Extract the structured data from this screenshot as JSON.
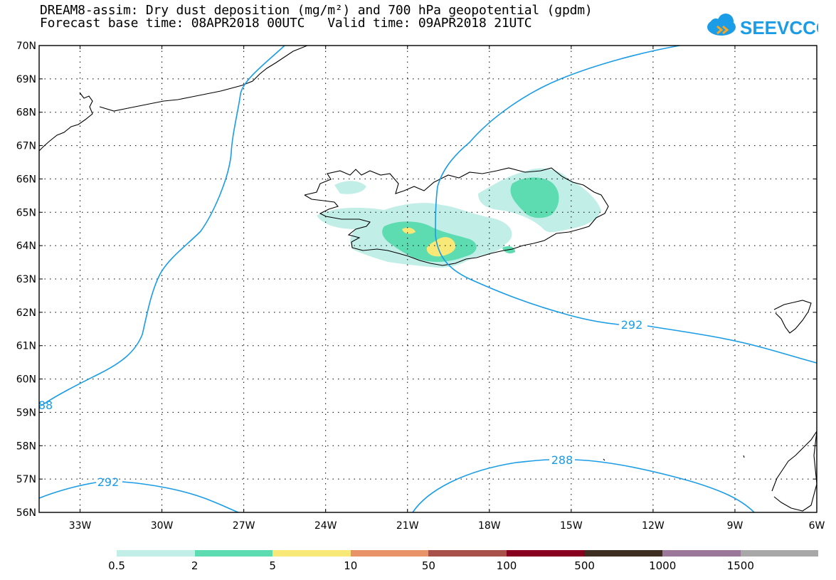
{
  "title": {
    "line1": "DREAM8-assim: Dry dust deposition (mg/m²) and 700 hPa geopotential (gpdm)",
    "line2": "Forecast base time: 08APR2018 00UTC   Valid time: 09APR2018 21UTC"
  },
  "logo": {
    "text": "SEEVCCC",
    "icon": "cloud-icon",
    "color": "#1a9ce6",
    "accent": "#f5a623"
  },
  "map": {
    "lat_labels": [
      "70N",
      "69N",
      "68N",
      "67N",
      "66N",
      "65N",
      "64N",
      "63N",
      "62N",
      "61N",
      "60N",
      "59N",
      "58N",
      "57N",
      "56N"
    ],
    "lon_labels": [
      "33W",
      "30W",
      "27W",
      "24W",
      "21W",
      "18W",
      "15W",
      "12W",
      "9W",
      "6W"
    ],
    "lat_range": [
      56,
      70
    ],
    "lon_range": [
      -34.5,
      -6
    ],
    "contours": [
      {
        "value": "292",
        "label": "292"
      },
      {
        "value": "288",
        "label": "288"
      },
      {
        "value": "88",
        "label": "88"
      }
    ],
    "contour_color": "#1a9ce6"
  },
  "legend": {
    "colors": [
      "#c2eee8",
      "#5cdcb0",
      "#f8e878",
      "#e89468",
      "#a8504a",
      "#880020",
      "#3e2e22",
      "#9b789a",
      "#a8a8a8"
    ],
    "labels": [
      "0.5",
      "2",
      "5",
      "10",
      "50",
      "100",
      "500",
      "1000",
      "1500"
    ]
  }
}
